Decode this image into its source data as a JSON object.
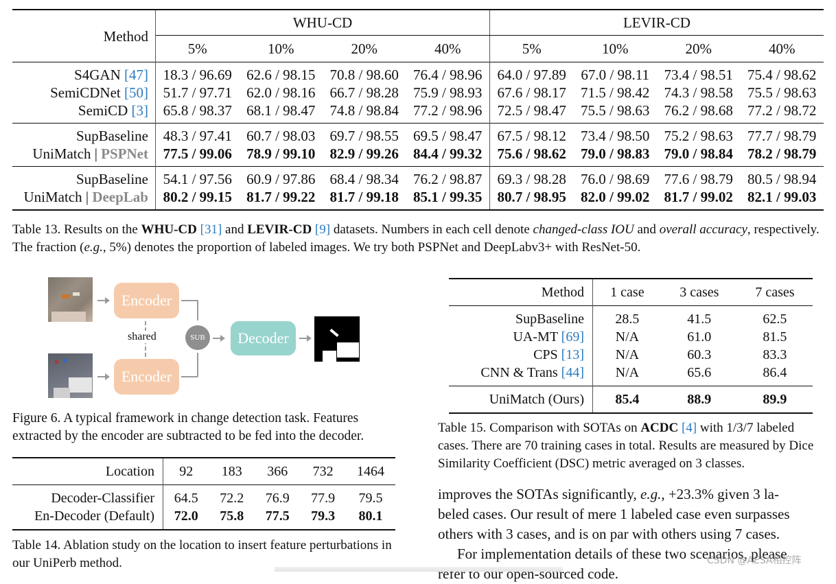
{
  "table13": {
    "method_header": "Method",
    "datasets": [
      "WHU-CD",
      "LEVIR-CD"
    ],
    "fractions": [
      "5%",
      "10%",
      "20%",
      "40%"
    ],
    "groups": [
      [
        {
          "name": "S4GAN",
          "ref": "[47]",
          "whu": [
            "18.3 / 96.69",
            "62.6 / 98.15",
            "70.8 / 98.60",
            "76.4 / 98.96"
          ],
          "levir": [
            "64.0 / 97.89",
            "67.0 / 98.11",
            "73.4 / 98.51",
            "75.4 / 98.62"
          ]
        },
        {
          "name": "SemiCDNet",
          "ref": "[50]",
          "whu": [
            "51.7 / 97.71",
            "62.0 / 98.16",
            "66.7 / 98.28",
            "75.9 / 98.93"
          ],
          "levir": [
            "67.6 / 98.17",
            "71.5 / 98.42",
            "74.3 / 98.58",
            "75.5 / 98.63"
          ]
        },
        {
          "name": "SemiCD",
          "ref": "[3]",
          "whu": [
            "65.8 / 98.37",
            "68.1 / 98.47",
            "74.8 / 98.84",
            "77.2 / 98.96"
          ],
          "levir": [
            "72.5 / 98.47",
            "75.5 / 98.63",
            "76.2 / 98.68",
            "77.2 / 98.72"
          ]
        }
      ],
      [
        {
          "name": "SupBaseline",
          "whu": [
            "48.3 / 97.41",
            "60.7 / 98.03",
            "69.7 / 98.55",
            "69.5 / 98.47"
          ],
          "levir": [
            "67.5 / 98.12",
            "73.4 / 98.50",
            "75.2 / 98.63",
            "77.7 / 98.79"
          ]
        },
        {
          "name": "UniMatch | ",
          "backbone": "PSPNet",
          "bold": true,
          "whu": [
            "77.5 / 99.06",
            "78.9 / 99.10",
            "82.9 / 99.26",
            "84.4 / 99.32"
          ],
          "levir": [
            "75.6 / 98.62",
            "79.0 / 98.83",
            "79.0 / 98.84",
            "78.2 / 98.79"
          ]
        }
      ],
      [
        {
          "name": "SupBaseline",
          "whu": [
            "54.1 / 97.56",
            "60.9 / 97.86",
            "68.4 / 98.34",
            "76.2 / 98.87"
          ],
          "levir": [
            "69.3 / 98.28",
            "76.0 / 98.69",
            "77.6 / 98.79",
            "80.5 / 98.94"
          ]
        },
        {
          "name": "UniMatch | ",
          "backbone": "DeepLab",
          "bold": true,
          "whu": [
            "80.2 / 99.15",
            "81.7 / 99.22",
            "81.7 / 99.18",
            "85.1 / 99.35"
          ],
          "levir": [
            "80.7 / 98.95",
            "82.0 / 99.02",
            "81.7 / 99.02",
            "82.1 / 99.03"
          ]
        }
      ]
    ],
    "caption": {
      "p1": "Table 13. Results on the ",
      "b1": "WHU-CD",
      "r1": "[31]",
      "p2": " and ",
      "b2": "LEVIR-CD",
      "r2": "[9]",
      "p3": " datasets. Numbers in each cell denote ",
      "i1": "changed-class IOU",
      "p4": " and ",
      "i2": "overall accuracy",
      "p5": ", respectively. The fraction (",
      "i3": "e.g.",
      "p6": ", 5%) denotes the proportion of labeled images. We try both PSPNet and DeepLabv3+ with ResNet-50."
    }
  },
  "figure6": {
    "encoder_label": "Encoder",
    "decoder_label": "Decoder",
    "sub_label": "SUB",
    "shared_label": "shared",
    "caption": "Figure 6. A typical framework in change detection task. Features extracted by the encoder are subtracted to be fed into the decoder."
  },
  "table14": {
    "header": [
      "Location",
      "92",
      "183",
      "366",
      "732",
      "1464"
    ],
    "rows": [
      {
        "name": "Decoder-Classifier",
        "values": [
          "64.5",
          "72.2",
          "76.9",
          "77.9",
          "79.5"
        ]
      },
      {
        "name": "En-Decoder (Default)",
        "values": [
          "72.0",
          "75.8",
          "77.5",
          "79.3",
          "80.1"
        ],
        "bold": true
      }
    ],
    "caption": "Table 14. Ablation study on the location to insert feature perturbations in our UniPerb method."
  },
  "table15": {
    "header": [
      "Method",
      "1 case",
      "3 cases",
      "7 cases"
    ],
    "rows": [
      {
        "name": "SupBaseline",
        "ref": "",
        "values": [
          "28.5",
          "41.5",
          "62.5"
        ]
      },
      {
        "name": "UA-MT",
        "ref": "[69]",
        "values": [
          "N/A",
          "61.0",
          "81.5"
        ]
      },
      {
        "name": "CPS",
        "ref": "[13]",
        "values": [
          "N/A",
          "60.3",
          "83.3"
        ]
      },
      {
        "name": "CNN & Trans",
        "ref": "[44]",
        "values": [
          "N/A",
          "65.6",
          "86.4"
        ]
      }
    ],
    "ours": {
      "name": "UniMatch (Ours)",
      "values": [
        "85.4",
        "88.9",
        "89.9"
      ]
    },
    "caption": {
      "p1": "Table 15. Comparison with SOTAs on ",
      "b1": "ACDC",
      "r1": "[4]",
      "p2": " with 1/3/7 labeled cases. There are 70 training cases in total. Results are measured by Dice Similarity Coefficient (DSC) metric averaged on 3 classes."
    }
  },
  "body_text": {
    "l1a": "improves the SOTAs significantly, ",
    "l1i": "e.g.",
    "l1b": ", +23.3% given 3 la-",
    "l2": "beled cases. Our result of mere 1 labeled case even surpasses",
    "l3": "others with 3 cases, and is on par with others using 7 cases.",
    "l4": "For implementation details of these two scenarios, please",
    "l5": "refer to our open-sourced code."
  },
  "watermark": "CSDN @AESA相控阵"
}
